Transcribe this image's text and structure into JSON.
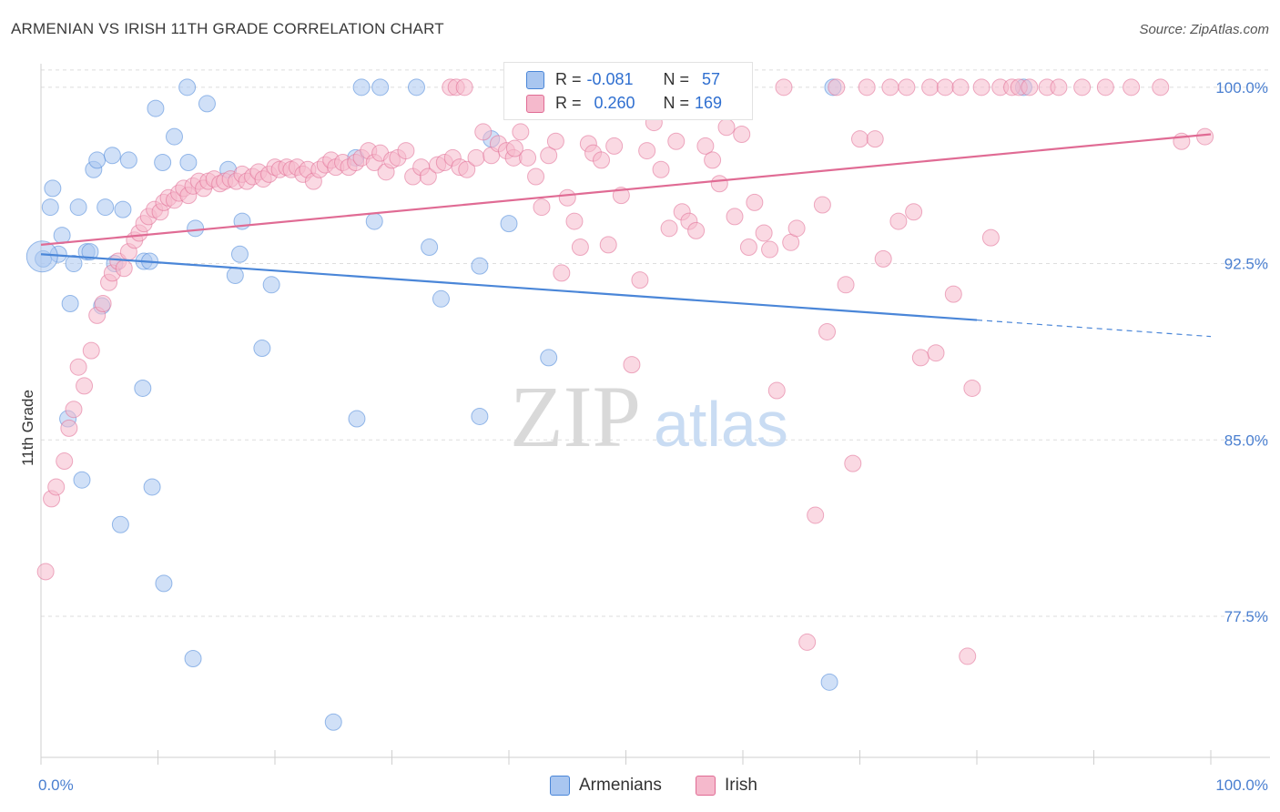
{
  "title": "ARMENIAN VS IRISH 11TH GRADE CORRELATION CHART",
  "source": "Source: ZipAtlas.com",
  "watermark": {
    "zip": "ZIP",
    "atlas": "atlas"
  },
  "legend": {
    "r_label": "R =",
    "n_label": "N =",
    "rows": [
      {
        "r": "-0.081",
        "n": "57",
        "color": "#a9c6f0"
      },
      {
        "r": "0.260",
        "n": "169",
        "color": "#f5b9cc"
      }
    ]
  },
  "bottom_legend": [
    {
      "label": "Armenians",
      "color": "#a9c6f0"
    },
    {
      "label": "Irish",
      "color": "#f5b9cc"
    }
  ],
  "chart_data": {
    "type": "scatter",
    "title": "ARMENIAN VS IRISH 11TH GRADE CORRELATION CHART",
    "xlabel": "",
    "ylabel": "11th Grade",
    "xlim": [
      0,
      100
    ],
    "ylim": [
      71.5,
      101
    ],
    "x_tick_labels": [
      "0.0%",
      "100.0%"
    ],
    "y_ticks": [
      77.5,
      85.0,
      92.5,
      100.0
    ],
    "y_tick_labels": [
      "77.5%",
      "85.0%",
      "92.5%",
      "100.0%"
    ],
    "grid": true,
    "legend_position": "top-center",
    "series": [
      {
        "name": "Armenians",
        "color": "#4a86d8",
        "fill": "#a9c6f0",
        "r": -0.081,
        "n": 57,
        "trend": {
          "x0": 0,
          "y0": 92.9,
          "x1": 80,
          "y1": 90.1,
          "dash_to": 100,
          "dash_y": 89.4
        },
        "points": [
          [
            0.2,
            92.7
          ],
          [
            0.8,
            94.9
          ],
          [
            1.0,
            95.7
          ],
          [
            1.5,
            92.9
          ],
          [
            1.8,
            93.7
          ],
          [
            2.3,
            85.9
          ],
          [
            2.5,
            90.8
          ],
          [
            2.8,
            92.5
          ],
          [
            3.2,
            94.9
          ],
          [
            3.5,
            83.3
          ],
          [
            3.9,
            93.0
          ],
          [
            4.2,
            93.0
          ],
          [
            4.5,
            96.5
          ],
          [
            4.8,
            96.9
          ],
          [
            5.2,
            90.7
          ],
          [
            5.5,
            94.9
          ],
          [
            6.1,
            97.1
          ],
          [
            6.3,
            92.5
          ],
          [
            6.8,
            81.4
          ],
          [
            7.0,
            94.8
          ],
          [
            7.5,
            96.9
          ],
          [
            8.7,
            87.2
          ],
          [
            8.8,
            92.6
          ],
          [
            9.3,
            92.6
          ],
          [
            9.5,
            83.0
          ],
          [
            9.8,
            99.1
          ],
          [
            10.4,
            96.8
          ],
          [
            10.5,
            78.9
          ],
          [
            11.4,
            97.9
          ],
          [
            12.5,
            100.0
          ],
          [
            12.6,
            96.8
          ],
          [
            13.0,
            75.7
          ],
          [
            13.2,
            94.0
          ],
          [
            14.2,
            99.3
          ],
          [
            16.0,
            96.5
          ],
          [
            16.6,
            92.0
          ],
          [
            17.0,
            92.9
          ],
          [
            17.2,
            94.3
          ],
          [
            18.9,
            88.9
          ],
          [
            19.7,
            91.6
          ],
          [
            25.0,
            73.0
          ],
          [
            26.9,
            97.0
          ],
          [
            27.0,
            85.9
          ],
          [
            27.4,
            100.0
          ],
          [
            29.0,
            100.0
          ],
          [
            28.5,
            94.3
          ],
          [
            32.1,
            100.0
          ],
          [
            33.2,
            93.2
          ],
          [
            34.2,
            91.0
          ],
          [
            37.5,
            86.0
          ],
          [
            37.5,
            92.4
          ],
          [
            38.5,
            97.8
          ],
          [
            40.0,
            94.2
          ],
          [
            43.4,
            88.5
          ],
          [
            67.7,
            100.0
          ],
          [
            84.0,
            100.0
          ],
          [
            67.4,
            74.7
          ]
        ]
      },
      {
        "name": "Irish",
        "color": "#e06b94",
        "fill": "#f5b9cc",
        "r": 0.26,
        "n": 169,
        "trend": {
          "x0": 0,
          "y0": 93.3,
          "x1": 100,
          "y1": 98.0
        },
        "points": [
          [
            0.4,
            79.4
          ],
          [
            0.9,
            82.5
          ],
          [
            1.3,
            83.0
          ],
          [
            2.0,
            84.1
          ],
          [
            2.4,
            85.5
          ],
          [
            2.8,
            86.3
          ],
          [
            3.2,
            88.1
          ],
          [
            3.7,
            87.3
          ],
          [
            4.3,
            88.8
          ],
          [
            4.8,
            90.3
          ],
          [
            5.3,
            90.8
          ],
          [
            5.8,
            91.7
          ],
          [
            6.1,
            92.1
          ],
          [
            6.6,
            92.6
          ],
          [
            7.1,
            92.3
          ],
          [
            7.5,
            93.0
          ],
          [
            8.0,
            93.5
          ],
          [
            8.4,
            93.8
          ],
          [
            8.8,
            94.2
          ],
          [
            9.2,
            94.5
          ],
          [
            9.7,
            94.8
          ],
          [
            10.2,
            94.7
          ],
          [
            10.5,
            95.1
          ],
          [
            10.9,
            95.3
          ],
          [
            11.4,
            95.2
          ],
          [
            11.8,
            95.5
          ],
          [
            12.2,
            95.7
          ],
          [
            12.6,
            95.4
          ],
          [
            13.0,
            95.8
          ],
          [
            13.5,
            96.0
          ],
          [
            13.9,
            95.7
          ],
          [
            14.3,
            96.0
          ],
          [
            14.8,
            96.1
          ],
          [
            15.3,
            95.9
          ],
          [
            15.7,
            96.0
          ],
          [
            16.2,
            96.1
          ],
          [
            16.7,
            96.0
          ],
          [
            17.2,
            96.3
          ],
          [
            17.6,
            96.0
          ],
          [
            18.1,
            96.2
          ],
          [
            18.6,
            96.4
          ],
          [
            19.0,
            96.1
          ],
          [
            19.5,
            96.3
          ],
          [
            20.0,
            96.6
          ],
          [
            20.4,
            96.5
          ],
          [
            21.0,
            96.6
          ],
          [
            21.4,
            96.5
          ],
          [
            21.9,
            96.6
          ],
          [
            22.4,
            96.3
          ],
          [
            22.8,
            96.5
          ],
          [
            23.3,
            96.0
          ],
          [
            23.8,
            96.5
          ],
          [
            24.3,
            96.7
          ],
          [
            24.8,
            96.9
          ],
          [
            25.2,
            96.6
          ],
          [
            25.8,
            96.8
          ],
          [
            26.3,
            96.6
          ],
          [
            26.9,
            96.8
          ],
          [
            27.4,
            97.0
          ],
          [
            28.0,
            97.3
          ],
          [
            28.5,
            96.8
          ],
          [
            29.0,
            97.2
          ],
          [
            29.5,
            96.4
          ],
          [
            30.0,
            96.9
          ],
          [
            30.5,
            97.0
          ],
          [
            31.2,
            97.3
          ],
          [
            31.8,
            96.2
          ],
          [
            32.5,
            96.6
          ],
          [
            33.1,
            96.2
          ],
          [
            33.9,
            96.7
          ],
          [
            34.5,
            96.8
          ],
          [
            35.2,
            97.0
          ],
          [
            35.8,
            96.6
          ],
          [
            36.4,
            96.5
          ],
          [
            37.2,
            97.0
          ],
          [
            37.8,
            98.1
          ],
          [
            38.5,
            97.1
          ],
          [
            39.1,
            97.6
          ],
          [
            39.8,
            97.3
          ],
          [
            40.4,
            97.0
          ],
          [
            41.0,
            98.1
          ],
          [
            41.6,
            97.0
          ],
          [
            42.3,
            96.2
          ],
          [
            42.8,
            94.9
          ],
          [
            43.4,
            97.1
          ],
          [
            44.0,
            97.7
          ],
          [
            44.5,
            92.1
          ],
          [
            45.0,
            95.3
          ],
          [
            45.6,
            94.3
          ],
          [
            46.1,
            93.2
          ],
          [
            46.8,
            97.6
          ],
          [
            47.2,
            97.2
          ],
          [
            47.9,
            96.9
          ],
          [
            48.5,
            93.3
          ],
          [
            49.0,
            97.5
          ],
          [
            49.6,
            95.4
          ],
          [
            50.5,
            88.2
          ],
          [
            51.2,
            91.8
          ],
          [
            51.8,
            97.3
          ],
          [
            52.4,
            98.5
          ],
          [
            53.0,
            96.5
          ],
          [
            53.7,
            94.0
          ],
          [
            54.3,
            97.7
          ],
          [
            54.8,
            94.7
          ],
          [
            55.4,
            94.3
          ],
          [
            56.0,
            93.9
          ],
          [
            56.8,
            97.5
          ],
          [
            57.4,
            96.9
          ],
          [
            58.0,
            95.9
          ],
          [
            58.6,
            98.3
          ],
          [
            59.3,
            94.5
          ],
          [
            59.9,
            98.0
          ],
          [
            60.5,
            93.2
          ],
          [
            61.0,
            95.1
          ],
          [
            61.8,
            93.8
          ],
          [
            62.3,
            93.1
          ],
          [
            62.9,
            87.1
          ],
          [
            63.5,
            100.0
          ],
          [
            64.1,
            93.4
          ],
          [
            64.6,
            94.0
          ],
          [
            65.5,
            76.4
          ],
          [
            66.2,
            81.8
          ],
          [
            66.8,
            95.0
          ],
          [
            67.2,
            89.6
          ],
          [
            68.0,
            100.0
          ],
          [
            68.8,
            91.6
          ],
          [
            69.4,
            84.0
          ],
          [
            70.0,
            97.8
          ],
          [
            70.6,
            100.0
          ],
          [
            71.3,
            97.8
          ],
          [
            72.0,
            92.7
          ],
          [
            72.6,
            100.0
          ],
          [
            73.3,
            94.3
          ],
          [
            74.0,
            100.0
          ],
          [
            74.6,
            94.7
          ],
          [
            75.2,
            88.5
          ],
          [
            76.0,
            100.0
          ],
          [
            76.5,
            88.7
          ],
          [
            77.3,
            100.0
          ],
          [
            78.0,
            91.2
          ],
          [
            78.6,
            100.0
          ],
          [
            79.2,
            75.8
          ],
          [
            79.6,
            87.2
          ],
          [
            80.4,
            100.0
          ],
          [
            81.2,
            93.6
          ],
          [
            82.0,
            100.0
          ],
          [
            83.0,
            100.0
          ],
          [
            83.6,
            100.0
          ],
          [
            84.5,
            100.0
          ],
          [
            86.0,
            100.0
          ],
          [
            87.0,
            100.0
          ],
          [
            89.0,
            100.0
          ],
          [
            91.0,
            100.0
          ],
          [
            93.2,
            100.0
          ],
          [
            95.7,
            100.0
          ],
          [
            97.5,
            97.7
          ],
          [
            99.5,
            97.9
          ],
          [
            35.0,
            100.0
          ],
          [
            35.5,
            100.0
          ],
          [
            36.2,
            100.0
          ],
          [
            40.5,
            97.4
          ],
          [
            50.0,
            100.0
          ],
          [
            51.0,
            100.0
          ]
        ]
      }
    ]
  }
}
